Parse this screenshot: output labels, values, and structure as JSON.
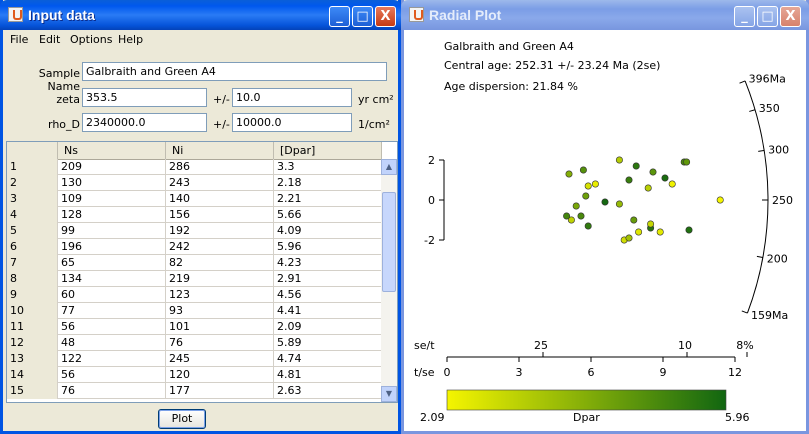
{
  "input_window": {
    "title": "Input data",
    "menu": [
      "File",
      "Edit",
      "Options",
      "Help"
    ],
    "sample_name_label": "Sample Name",
    "sample_name": "Galbraith and Green A4",
    "zeta_label": "zeta",
    "zeta": "353.5",
    "zeta_err": "10.0",
    "zeta_unit": "yr cm²",
    "rho_label": "rho_D",
    "rho": "2340000.0",
    "rho_err": "10000.0",
    "rho_unit": "1/cm²",
    "pm": "+/-",
    "columns": [
      "Ns",
      "Ni",
      "[Dpar]"
    ],
    "rows": [
      [
        "1",
        "209",
        "286",
        "3.3"
      ],
      [
        "2",
        "130",
        "243",
        "2.18"
      ],
      [
        "3",
        "109",
        "140",
        "2.21"
      ],
      [
        "4",
        "128",
        "156",
        "5.66"
      ],
      [
        "5",
        "99",
        "192",
        "4.09"
      ],
      [
        "6",
        "196",
        "242",
        "5.96"
      ],
      [
        "7",
        "65",
        "82",
        "4.23"
      ],
      [
        "8",
        "134",
        "219",
        "2.91"
      ],
      [
        "9",
        "60",
        "123",
        "4.56"
      ],
      [
        "10",
        "77",
        "93",
        "4.41"
      ],
      [
        "11",
        "56",
        "101",
        "2.09"
      ],
      [
        "12",
        "48",
        "76",
        "5.89"
      ],
      [
        "13",
        "122",
        "245",
        "4.74"
      ],
      [
        "14",
        "56",
        "120",
        "4.81"
      ],
      [
        "15",
        "76",
        "177",
        "2.63"
      ]
    ],
    "plot_button": "Plot",
    "buttons": {
      "min": "_",
      "max": "□",
      "close": "X"
    }
  },
  "radial_window": {
    "title": "Radial Plot",
    "sample": "Galbraith and Green A4",
    "central_age": "Central age: 252.31 +/- 23.24 Ma (2se)",
    "dispersion": "Age dispersion: 21.84 %",
    "y_ticks": [
      "2",
      "0",
      "-2"
    ],
    "arc_labels": [
      "396Ma",
      "350",
      "300",
      "250",
      "200",
      "159Ma"
    ],
    "se_label": "se/t",
    "se_ticks": [
      "25",
      "10",
      "8%"
    ],
    "t_label": "t/se",
    "t_ticks": [
      "0",
      "3",
      "6",
      "9",
      "12"
    ],
    "color_min": "2.09",
    "color_max": "5.96",
    "color_label": "Dpar",
    "colors": {
      "low": "#f5f500",
      "high": "#116611"
    },
    "buttons": {
      "min": "_",
      "max": "□",
      "close": "X"
    }
  },
  "chart_data": {
    "type": "scatter",
    "title": "Galbraith and Green A4",
    "subtitle": "Central age: 252.31 +/- 23.24 Ma (2se)",
    "xlabel": "t/se",
    "ylabel": "",
    "xlim": [
      0,
      12
    ],
    "ylim": [
      -2,
      2
    ],
    "series": [
      {
        "x": [
          7.6,
          6.1,
          6.6,
          6.2,
          8.3,
          8.8,
          8.0,
          5.5,
          6.3,
          10.3,
          9.0,
          9.8,
          7.0,
          7.6,
          5.8,
          5.6,
          8.9,
          8.2,
          8.9,
          6.3,
          5.4,
          8.4,
          10.4,
          9.5,
          11.8,
          7.8,
          6.0,
          9.3,
          10.5,
          8.0
        ],
        "y": [
          2.0,
          1.5,
          0.8,
          0.2,
          1.7,
          0.6,
          1.0,
          1.3,
          0.7,
          1.9,
          1.4,
          0.8,
          -0.1,
          -0.2,
          -0.3,
          -1.0,
          -1.4,
          -1.0,
          -1.2,
          -1.3,
          -0.8,
          -1.6,
          1.9,
          1.1,
          0.0,
          -2.0,
          -0.8,
          -1.6,
          -1.5,
          -1.9
        ],
        "dpar": [
          3.2,
          4.8,
          2.3,
          4.4,
          5.5,
          3.1,
          5.3,
          4.0,
          2.6,
          5.0,
          4.7,
          2.2,
          5.9,
          3.7,
          4.2,
          3.0,
          5.6,
          4.5,
          2.9,
          5.4,
          5.1,
          2.5,
          4.6,
          5.8,
          2.1,
          2.7,
          5.0,
          2.4,
          5.7,
          3.5
        ]
      }
    ],
    "color_scale": {
      "label": "Dpar",
      "min": 2.09,
      "max": 5.96
    }
  }
}
